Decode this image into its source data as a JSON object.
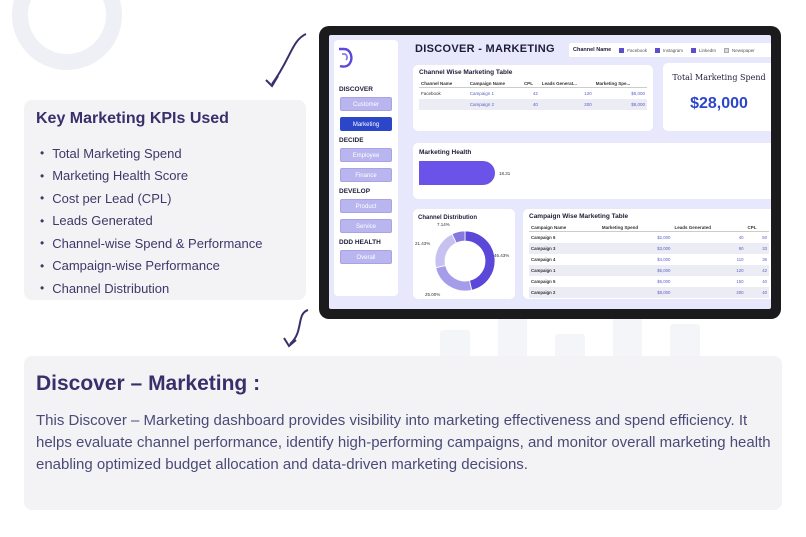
{
  "kpis": {
    "title": "Key Marketing KPIs Used",
    "items": [
      "Total Marketing Spend",
      "Marketing Health Score",
      "Cost per Lead (CPL)",
      "Leads Generated",
      "Channel-wise Spend & Performance",
      "Campaign-wise Performance",
      "Channel Distribution"
    ]
  },
  "dashboard": {
    "title": "DISCOVER - MARKETING",
    "sidebar": {
      "discover_label": "DISCOVER",
      "customer": "Customer",
      "marketing": "Marketing",
      "decide_label": "DECIDE",
      "employee": "Employee",
      "finance": "Finance",
      "develop_label": "DEVELOP",
      "product": "Product",
      "service": "Service",
      "health_label": "DDD HEALTH",
      "overall": "Overall"
    },
    "channel_filter": {
      "label": "Channel Name",
      "options": [
        "Facebook",
        "Instagram",
        "LinkedIn",
        "Newspaper"
      ]
    },
    "channel_table": {
      "title": "Channel Wise Marketing Table",
      "headers": [
        "Channel Name",
        "Campaign Name",
        "CPL",
        "Leads Generat...",
        "Marketing Spe..."
      ],
      "channel": "Facebook",
      "rows": [
        {
          "campaign": "Campaign 1",
          "cpl": "42",
          "leads": "120",
          "spend": "$5,000"
        },
        {
          "campaign": "Campaign 2",
          "cpl": "40",
          "leads": "200",
          "spend": "$8,000"
        }
      ]
    },
    "spend": {
      "label": "Total Marketing Spend",
      "value": "$28,000"
    },
    "health": {
      "title": "Marketing Health",
      "value": "18.31",
      "value_num": 18.31
    },
    "distribution": {
      "title": "Channel Distribution",
      "labels": [
        "46.43%",
        "25.00%",
        "21.43%",
        "7.14%"
      ],
      "colors": [
        "#5b48d8",
        "#a59cea",
        "#c7c1f2",
        "#8576e0"
      ],
      "shares": [
        46.43,
        25.0,
        21.43,
        7.14
      ]
    },
    "campaign_table": {
      "title": "Campaign Wise Marketing Table",
      "headers": [
        "Campaign Name",
        "Marketing Spend",
        "Leads Generated",
        "CPL"
      ],
      "rows": [
        [
          "Campaign 6",
          "$2,000",
          "40",
          "50"
        ],
        [
          "Campaign 3",
          "$3,000",
          "90",
          "33"
        ],
        [
          "Campaign 4",
          "$4,000",
          "110",
          "36"
        ],
        [
          "Campaign 1",
          "$5,000",
          "120",
          "42"
        ],
        [
          "Campaign 5",
          "$6,000",
          "150",
          "40"
        ],
        [
          "Campaign 2",
          "$8,000",
          "200",
          "40"
        ]
      ]
    }
  },
  "discover": {
    "title": "Discover – Marketing :",
    "body": "This Discover – Marketing dashboard provides visibility into marketing effectiveness and spend efficiency. It helps evaluate channel performance, identify high-performing campaigns, and monitor overall marketing health enabling optimized budget allocation and data-driven marketing decisions."
  }
}
